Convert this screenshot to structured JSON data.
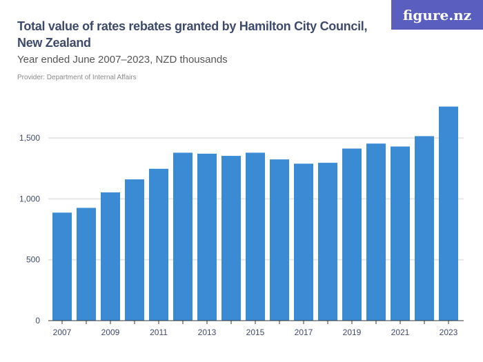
{
  "header": {
    "title": "Total value of rates rebates granted by Hamilton City Council, New Zealand",
    "subtitle": "Year ended June 2007–2023, NZD thousands",
    "provider": "Provider: Department of Internal Affairs",
    "logo": "figure.nz"
  },
  "chart_data": {
    "type": "bar",
    "title": "Total value of rates rebates granted by Hamilton City Council, New Zealand",
    "subtitle": "Year ended June 2007–2023, NZD thousands",
    "categories": [
      "2007",
      "2008",
      "2009",
      "2010",
      "2011",
      "2012",
      "2013",
      "2014",
      "2015",
      "2016",
      "2017",
      "2018",
      "2019",
      "2020",
      "2021",
      "2022",
      "2023"
    ],
    "values": [
      887,
      926,
      1053,
      1160,
      1247,
      1379,
      1371,
      1353,
      1379,
      1324,
      1289,
      1296,
      1413,
      1454,
      1430,
      1515,
      1758
    ],
    "x_tick_labels": [
      "2007",
      "2009",
      "2011",
      "2013",
      "2015",
      "2017",
      "2019",
      "2021",
      "2023"
    ],
    "y_ticks": [
      0,
      500,
      1000,
      1500
    ],
    "y_tick_labels": [
      "0",
      "500",
      "1,000",
      "1,500"
    ],
    "ylim": [
      0,
      1800
    ],
    "grid": true,
    "color": "#3a8ad4"
  }
}
